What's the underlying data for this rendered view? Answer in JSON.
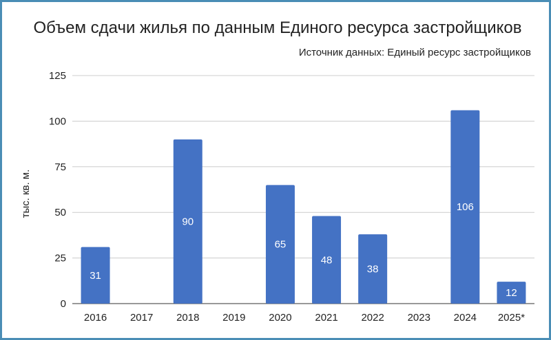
{
  "chart_data": {
    "type": "bar",
    "title": "Объем сдачи жилья по данным Единого ресурса застройщиков",
    "subtitle": "Источник данных: Единый ресурс застройщиков",
    "ylabel": "тыс. кв. м.",
    "xlabel": "",
    "ylim": [
      0,
      125
    ],
    "yticks": [
      "0",
      "25",
      "50",
      "75",
      "100",
      "125"
    ],
    "categories": [
      "2016",
      "2017",
      "2018",
      "2019",
      "2020",
      "2021",
      "2022",
      "2023",
      "2024",
      "2025*"
    ],
    "values": [
      31,
      null,
      90,
      null,
      65,
      48,
      38,
      null,
      106,
      12
    ],
    "data_labels": [
      "31",
      "",
      "90",
      "",
      "65",
      "48",
      "38",
      "",
      "106",
      "12"
    ],
    "grid": true,
    "legend": "none",
    "colors": {
      "bar": "#4472c4",
      "frame": "#4a8db5",
      "grid": "#cccccc"
    }
  }
}
